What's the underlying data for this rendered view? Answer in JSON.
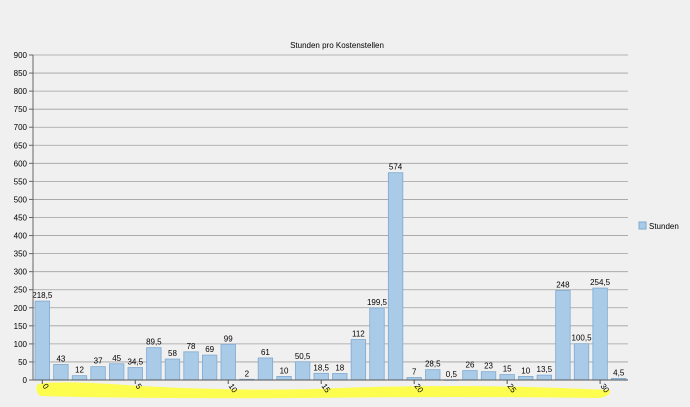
{
  "chart_data": {
    "type": "bar",
    "title": "Stunden pro Kostenstellen",
    "xlabel": "",
    "ylabel": "",
    "ylim": [
      0,
      900
    ],
    "yticks": [
      0,
      50,
      100,
      150,
      200,
      250,
      300,
      350,
      400,
      450,
      500,
      550,
      600,
      650,
      700,
      750,
      800,
      850,
      900
    ],
    "xticks": [
      0,
      5,
      10,
      15,
      20,
      25,
      30
    ],
    "grid": true,
    "legend_position": "right",
    "series": [
      {
        "name": "Stunden",
        "color": "#a9cbe8",
        "values": [
          218.5,
          43,
          12,
          37,
          45,
          34.5,
          89.5,
          58,
          78,
          69,
          99,
          2,
          61,
          10,
          50.5,
          18.5,
          18,
          112,
          199.5,
          574,
          7,
          28.5,
          0.5,
          26,
          23,
          15,
          10,
          13.5,
          248,
          100.5,
          254.5,
          4.5
        ],
        "labels": [
          "218,5",
          "43",
          "12",
          "37",
          "45",
          "34,5",
          "89,5",
          "58",
          "78",
          "69",
          "99",
          "2",
          "61",
          "10",
          "50,5",
          "18,5",
          "18",
          "112",
          "199,5",
          "574",
          "7",
          "28,5",
          "0,5",
          "26",
          "23",
          "15",
          "10",
          "13,5",
          "248",
          "100,5",
          "254,5",
          "4,5"
        ]
      }
    ],
    "annotation_highlight_color": "#ffff33"
  }
}
